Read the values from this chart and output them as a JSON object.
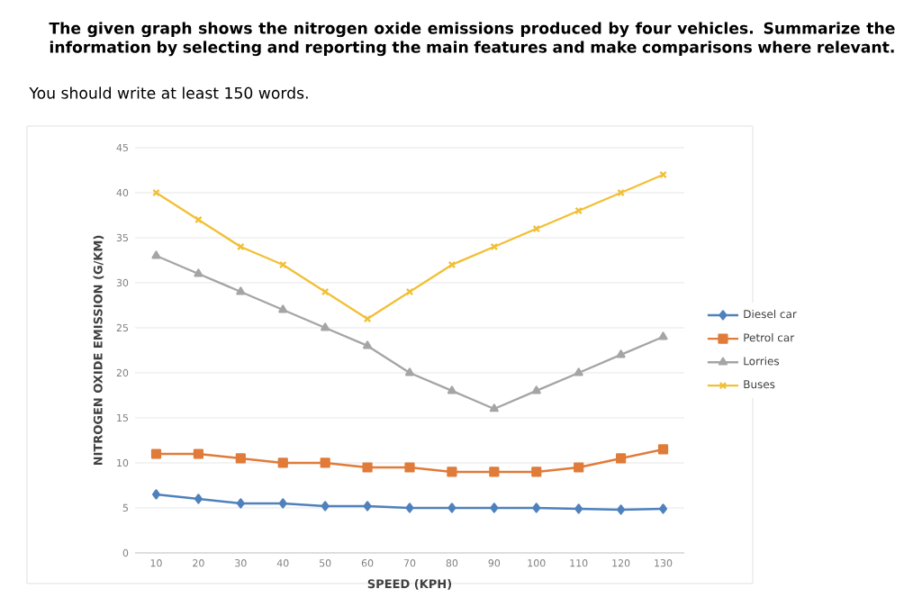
{
  "chart_data": {
    "type": "line",
    "title": "The given graph shows the nitrogen oxide emissions produced by four vehicles. Summarize the information by selecting and reporting the main features and make comparisons where relevant.",
    "annotations": [
      "You should write at least 150 words."
    ],
    "xlabel": "SPEED (KPH)",
    "ylabel": "NITROGEN OXIDE EMISSION (G/KM)",
    "categories": [
      "10",
      "20",
      "30",
      "40",
      "50",
      "60",
      "70",
      "80",
      "90",
      "100",
      "110",
      "120",
      "130"
    ],
    "series": [
      {
        "name": "Diesel car",
        "color": "#4f81bd",
        "marker": "diamond",
        "values": [
          6.5,
          6,
          5.5,
          5.5,
          5.2,
          5.2,
          5,
          5,
          5,
          5,
          4.9,
          4.8,
          4.9
        ]
      },
      {
        "name": "Petrol car",
        "color": "#e07b39",
        "marker": "square",
        "values": [
          11,
          11,
          10.5,
          10,
          10,
          9.5,
          9.5,
          9,
          9,
          9,
          9.5,
          10.5,
          11.5
        ]
      },
      {
        "name": "Lorries",
        "color": "#a5a5a5",
        "marker": "triangle",
        "values": [
          33,
          31,
          29,
          27,
          25,
          23,
          20,
          18,
          16,
          18,
          20,
          22,
          24
        ]
      },
      {
        "name": "Buses",
        "color": "#f2c037",
        "marker": "cross",
        "values": [
          40,
          37,
          34,
          32,
          29,
          26,
          29,
          32,
          34,
          36,
          38,
          40,
          42
        ]
      }
    ],
    "ylim": [
      0,
      45
    ],
    "yticks": [
      0,
      5,
      10,
      15,
      20,
      25,
      30,
      35,
      40,
      45
    ],
    "grid": "y",
    "legend": "right"
  }
}
